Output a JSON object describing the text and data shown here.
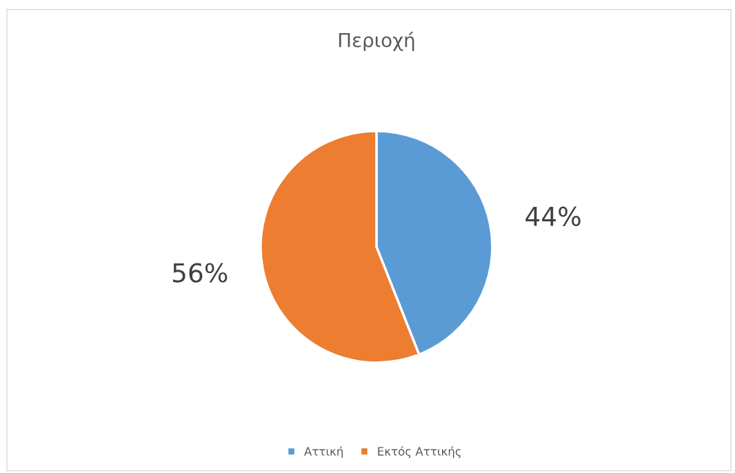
{
  "chart_data": {
    "type": "pie",
    "title": "Περιοχή",
    "categories": [
      "Αττική",
      "Εκτός Αττικής"
    ],
    "values": [
      44,
      56
    ],
    "colors": [
      "#5b9bd5",
      "#ed7d31"
    ],
    "value_labels": [
      "44%",
      "56%"
    ],
    "legend": "bottom"
  }
}
